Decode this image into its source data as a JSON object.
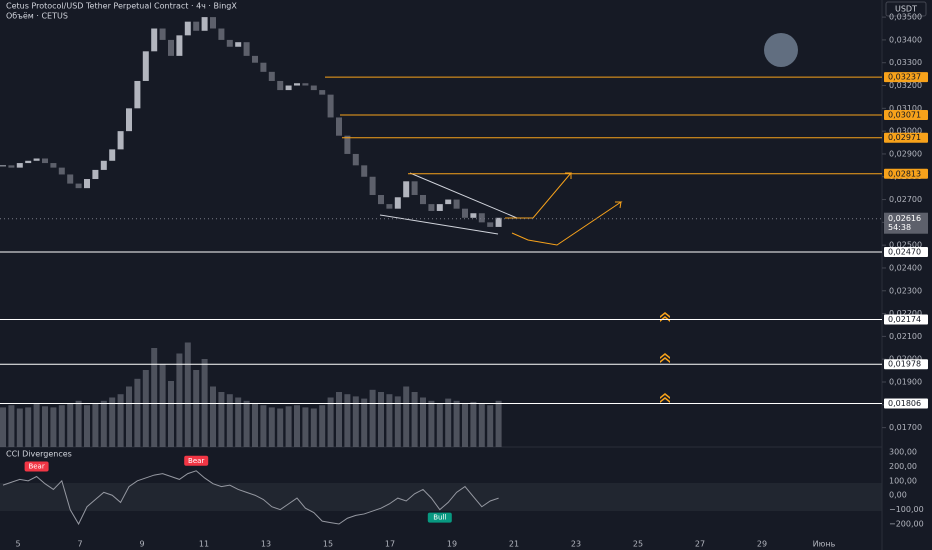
{
  "chart_data": {
    "type": "candlestick",
    "title": "Cetus Protocol/USD Tether Perpetual Contract · 4ч · BingX",
    "subtitle": "Объём · CETUS",
    "currency": "USDT",
    "close": [
      0.0285,
      0.0284,
      0.0286,
      0.0287,
      0.0288,
      0.0286,
      0.0284,
      0.0281,
      0.0277,
      0.0275,
      0.0279,
      0.0283,
      0.0287,
      0.0292,
      0.03,
      0.031,
      0.0322,
      0.0335,
      0.0345,
      0.034,
      0.0333,
      0.0342,
      0.0348,
      0.0344,
      0.035,
      0.0345,
      0.034,
      0.0337,
      0.0339,
      0.0333,
      0.033,
      0.0326,
      0.0322,
      0.0318,
      0.032,
      0.0321,
      0.032,
      0.0318,
      0.0316,
      0.0306,
      0.0298,
      0.029,
      0.0285,
      0.028,
      0.0272,
      0.0268,
      0.0266,
      0.0271,
      0.0278,
      0.0272,
      0.0268,
      0.0265,
      0.0268,
      0.027,
      0.0266,
      0.0262,
      0.0264,
      0.026,
      0.0258,
      0.0262
    ],
    "volume": [
      36,
      38,
      35,
      36,
      40,
      37,
      36,
      38,
      40,
      42,
      38,
      40,
      42,
      45,
      48,
      55,
      62,
      70,
      90,
      75,
      60,
      85,
      95,
      70,
      80,
      55,
      50,
      48,
      45,
      42,
      40,
      38,
      36,
      35,
      37,
      38,
      36,
      35,
      38,
      45,
      50,
      48,
      46,
      44,
      52,
      50,
      48,
      46,
      55,
      50,
      45,
      42,
      40,
      44,
      42,
      40,
      41,
      39,
      38,
      42
    ],
    "ylim": [
      0.01615,
      0.03575
    ],
    "yticks": [
      {
        "value": 0.035,
        "label": "0,03500"
      },
      {
        "value": 0.034,
        "label": "0,03400"
      },
      {
        "value": 0.033,
        "label": "0,03300"
      },
      {
        "value": 0.032,
        "label": "0,03200"
      },
      {
        "value": 0.031,
        "label": "0,03100"
      },
      {
        "value": 0.03,
        "label": "0,03000"
      },
      {
        "value": 0.029,
        "label": "0,02900"
      },
      {
        "value": 0.028,
        "label": "0,02800"
      },
      {
        "value": 0.027,
        "label": "0,02700"
      },
      {
        "value": 0.026,
        "label": "0,02600"
      },
      {
        "value": 0.025,
        "label": "0,02500"
      },
      {
        "value": 0.024,
        "label": "0,02400"
      },
      {
        "value": 0.023,
        "label": "0,02300"
      },
      {
        "value": 0.022,
        "label": "0,02200"
      },
      {
        "value": 0.021,
        "label": "0,02100"
      },
      {
        "value": 0.02,
        "label": "0,02000"
      },
      {
        "value": 0.019,
        "label": "0,01900"
      },
      {
        "value": 0.018,
        "label": "0,01800"
      },
      {
        "value": 0.017,
        "label": "0,01700"
      }
    ],
    "levels": [
      {
        "value": 0.03237,
        "label": "0,03237",
        "color": "#f7a21b"
      },
      {
        "value": 0.03071,
        "label": "0,03071",
        "color": "#f7a21b"
      },
      {
        "value": 0.02971,
        "label": "0,02971",
        "color": "#f7a21b"
      },
      {
        "value": 0.02813,
        "label": "0,02813",
        "color": "#f7a21b"
      },
      {
        "value": 0.0247,
        "label": "0,02470",
        "color": "#ffffff"
      },
      {
        "value": 0.02174,
        "label": "0,02174",
        "color": "#ffffff"
      },
      {
        "value": 0.01978,
        "label": "0,01978",
        "color": "#ffffff"
      },
      {
        "value": 0.01806,
        "label": "0,01806",
        "color": "#ffffff"
      }
    ],
    "last_price": {
      "value": 0.02616,
      "label": "0,02616"
    },
    "countdown": "54:38",
    "x_labels": [
      "5",
      "7",
      "9",
      "11",
      "13",
      "15",
      "17",
      "19",
      "21",
      "23",
      "25",
      "27",
      "29",
      "Июнь"
    ],
    "cci": {
      "title": "CCI Divergences",
      "ylim": [
        -311,
        335
      ],
      "yticks": [
        {
          "value": 300,
          "label": "300,00"
        },
        {
          "value": 200,
          "label": "200,00"
        },
        {
          "value": 100,
          "label": "100,00"
        },
        {
          "value": 0,
          "label": "0,00"
        },
        {
          "value": -100,
          "label": "−100,00"
        },
        {
          "value": -200,
          "label": "−200,00"
        }
      ],
      "values": [
        70,
        90,
        110,
        100,
        130,
        80,
        40,
        100,
        -100,
        -200,
        -80,
        -30,
        20,
        0,
        -50,
        60,
        100,
        120,
        140,
        150,
        130,
        110,
        150,
        170,
        120,
        80,
        60,
        70,
        40,
        20,
        0,
        -30,
        -80,
        -100,
        -60,
        -20,
        -90,
        -120,
        -180,
        -190,
        -200,
        -160,
        -140,
        -130,
        -110,
        -90,
        -60,
        -20,
        -40,
        10,
        40,
        -20,
        -100,
        -50,
        20,
        60,
        -10,
        -80,
        -40,
        -20
      ],
      "signals": [
        {
          "label": "Bear",
          "index": 4,
          "color": "#f23645"
        },
        {
          "label": "Bear",
          "index": 23,
          "color": "#f23645"
        },
        {
          "label": "Bull",
          "index": 52,
          "color": "#089981"
        }
      ]
    }
  }
}
